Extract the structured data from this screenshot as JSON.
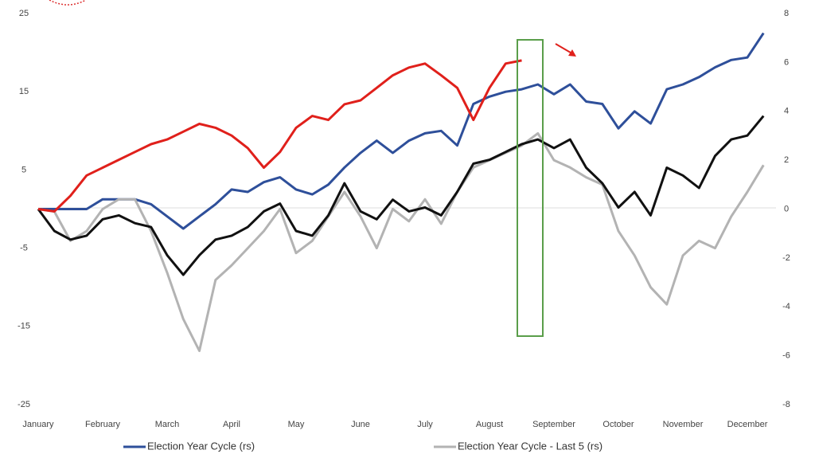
{
  "chart_data": {
    "type": "line",
    "categories": [
      "January",
      null,
      null,
      null,
      "February",
      null,
      null,
      null,
      "March",
      null,
      null,
      null,
      "April",
      null,
      null,
      null,
      "May",
      null,
      null,
      null,
      "June",
      null,
      null,
      null,
      "July",
      null,
      null,
      null,
      "August",
      null,
      null,
      null,
      "September",
      null,
      null,
      null,
      "October",
      null,
      null,
      null,
      "November",
      null,
      null,
      null,
      "December",
      null
    ],
    "series": [
      {
        "name": "Election Year Cycle (rs)",
        "color": "#2e4f9a",
        "axis": "y2",
        "values": [
          0,
          0,
          0,
          0,
          0.4,
          0.4,
          0.4,
          0.2,
          -0.3,
          -0.8,
          -0.3,
          0.2,
          0.8,
          0.7,
          1.1,
          1.3,
          0.8,
          0.6,
          1.0,
          1.7,
          2.3,
          2.8,
          2.3,
          2.8,
          3.1,
          3.2,
          2.6,
          4.3,
          4.6,
          4.8,
          4.9,
          5.1,
          4.7,
          5.1,
          4.4,
          4.3,
          3.3,
          4.0,
          3.5,
          4.9,
          5.1,
          5.4,
          5.8,
          6.1,
          6.2,
          7.2
        ]
      },
      {
        "name": "Election Year Cycle - Last 5 (rs)",
        "color": "#b3b3b3",
        "axis": "y2",
        "values": [
          0,
          -0.1,
          -1.3,
          -0.9,
          0,
          0.4,
          0.4,
          -0.9,
          -2.6,
          -4.5,
          -5.8,
          -2.9,
          -2.3,
          -1.6,
          -0.9,
          0,
          -1.8,
          -1.3,
          -0.3,
          0.7,
          -0.3,
          -1.6,
          0,
          -0.5,
          0.4,
          -0.6,
          0.7,
          1.7,
          2.0,
          2.3,
          2.6,
          3.1,
          2.0,
          1.7,
          1.3,
          1.0,
          -0.9,
          -1.9,
          -3.2,
          -3.9,
          -1.9,
          -1.3,
          -1.6,
          -0.3,
          0.7,
          1.8
        ]
      },
      {
        "color": "#111111",
        "values": [
          0,
          -2.8,
          -3.9,
          -3.4,
          -1.3,
          -0.8,
          -1.8,
          -2.3,
          -5.9,
          -8.4,
          -5.9,
          -3.9,
          -3.4,
          -2.3,
          -0.3,
          0.7,
          -2.8,
          -3.4,
          -0.8,
          3.3,
          -0.3,
          -1.3,
          1.2,
          -0.3,
          0.2,
          -0.8,
          2.2,
          5.8,
          6.3,
          7.3,
          8.3,
          8.9,
          7.8,
          8.9,
          5.3,
          3.3,
          0.2,
          2.2,
          -0.8,
          5.3,
          4.3,
          2.7,
          6.8,
          8.9,
          9.4,
          11.9
        ]
      },
      {
        "color": "#e0201b",
        "values": [
          0,
          -0.3,
          1.7,
          4.3,
          5.3,
          6.3,
          7.3,
          8.3,
          8.9,
          9.9,
          10.9,
          10.4,
          9.4,
          7.8,
          5.3,
          7.3,
          10.4,
          11.9,
          11.4,
          13.4,
          13.9,
          15.5,
          17.1,
          18.1,
          18.6,
          17.1,
          15.5,
          11.4,
          15.5,
          18.6,
          19.0,
          null,
          null,
          null,
          null,
          null,
          null,
          null,
          null,
          null,
          null,
          null,
          null,
          null,
          null,
          null
        ]
      }
    ],
    "ylim": [
      -25,
      25
    ],
    "yticks": [
      -25,
      -15,
      -5,
      5,
      15,
      25
    ],
    "y2lim": [
      -8,
      8
    ],
    "y2ticks": [
      -8,
      -6,
      -4,
      -2,
      0,
      2,
      4,
      6,
      8
    ]
  }
}
